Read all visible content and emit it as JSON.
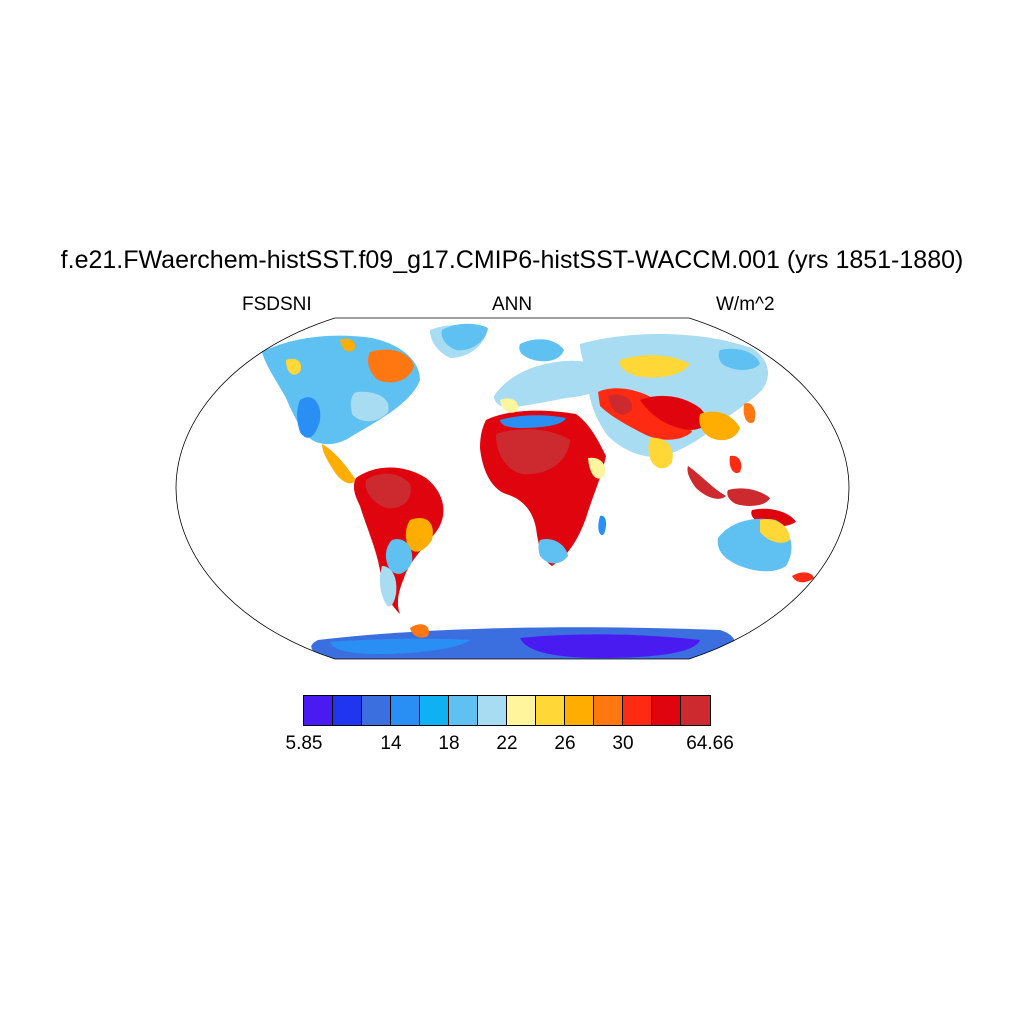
{
  "title": "f.e21.FWaerchem-histSST.f09_g17.CMIP6-histSST-WACCM.001 (yrs 1851-1880)",
  "variable": "FSDSNI",
  "season": "ANN",
  "units": "W/m^2",
  "colorbar": {
    "colors": [
      "#4a1bf0",
      "#1f35f0",
      "#3b6fe0",
      "#2a8ff5",
      "#10b0f5",
      "#5ec1f2",
      "#a8dcf2",
      "#fff59d",
      "#ffd736",
      "#ffad00",
      "#ff7710",
      "#ff2a12",
      "#e0040f",
      "#cc2a2e"
    ],
    "labels": [
      {
        "text": "5.85",
        "index": 0
      },
      {
        "text": "14",
        "index": 3
      },
      {
        "text": "18",
        "index": 5
      },
      {
        "text": "22",
        "index": 7
      },
      {
        "text": "26",
        "index": 9
      },
      {
        "text": "30",
        "index": 11
      },
      {
        "text": "64.66",
        "index": 14
      }
    ]
  }
}
